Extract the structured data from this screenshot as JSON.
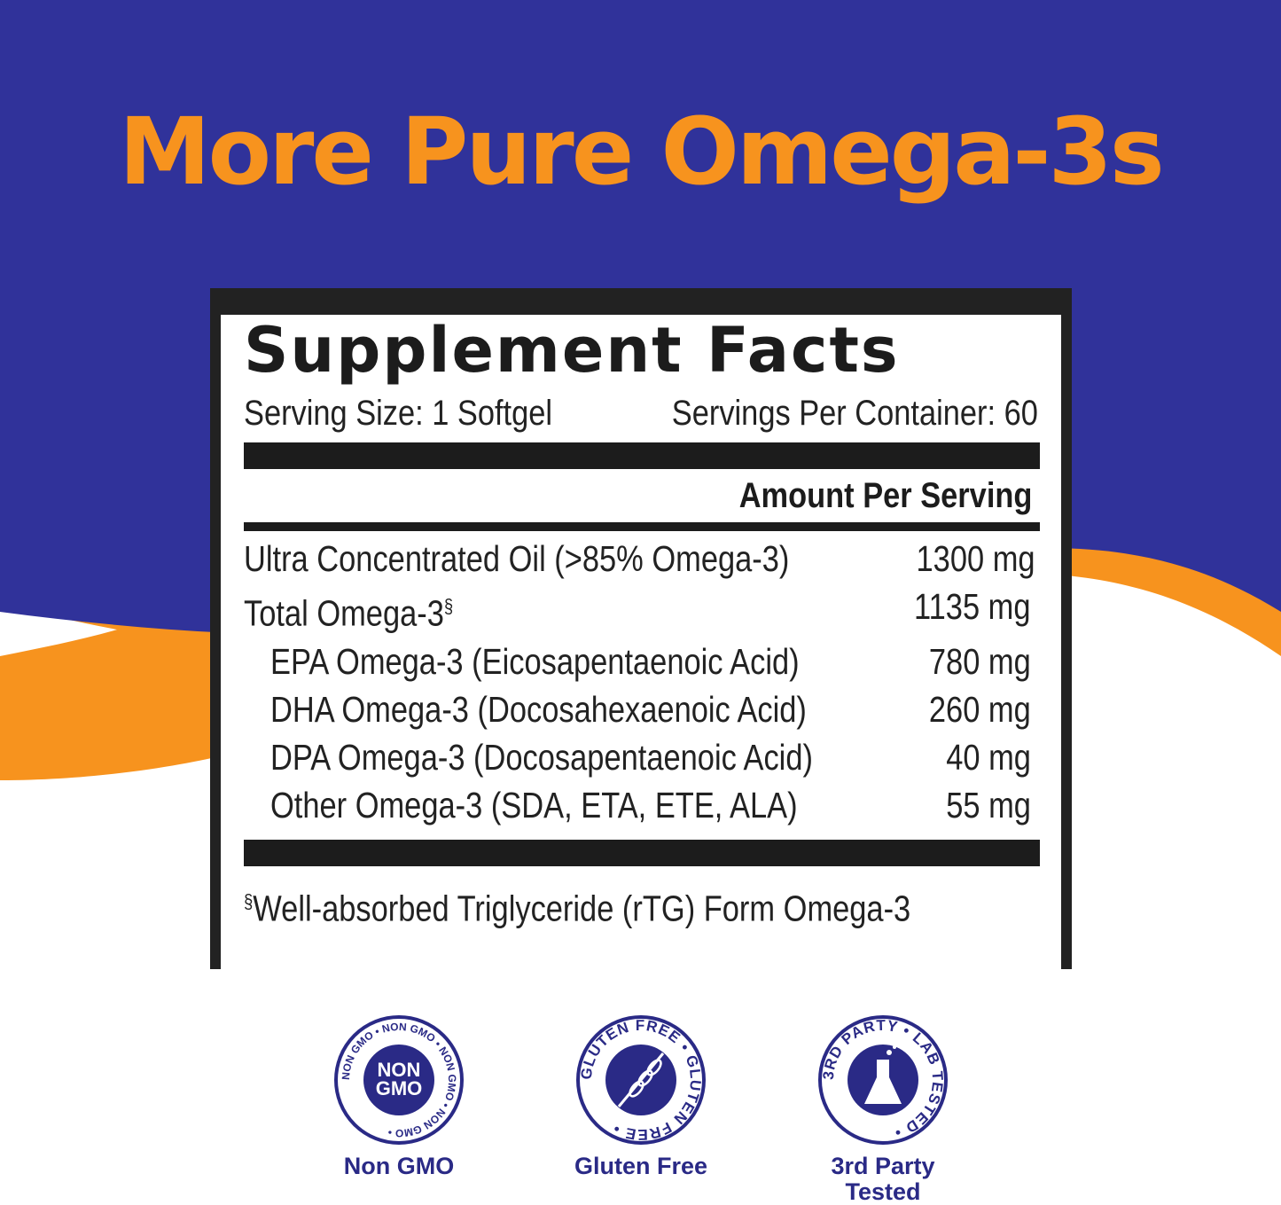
{
  "headline": "More Pure Omega-3s",
  "colors": {
    "background_blue": "#30329a",
    "accent_orange": "#f7931e",
    "badge_blue": "#2a2a86"
  },
  "facts": {
    "title": "Supplement Facts",
    "serving_size": "Serving Size: 1 Softgel",
    "servings_per_container": "Servings Per Container: 60",
    "amount_header": "Amount Per Serving",
    "rows": [
      {
        "name": "Ultra Concentrated Oil (>85% Omega-3)",
        "amount": "1300 mg"
      },
      {
        "name": "Total Omega-3",
        "mark": "§",
        "amount": "1135 mg"
      },
      {
        "name": "EPA Omega-3 (Eicosapentaenoic Acid)",
        "amount": "780 mg"
      },
      {
        "name": "DHA Omega-3 (Docosahexaenoic Acid)",
        "amount": "260 mg"
      },
      {
        "name": "DPA Omega-3 (Docosapentaenoic Acid)",
        "amount": "40 mg"
      },
      {
        "name": "Other Omega-3 (SDA, ETA, ETE, ALA)",
        "amount": "55 mg"
      }
    ],
    "footnote_mark": "§",
    "footnote": "Well-absorbed Triglyceride (rTG) Form Omega-3"
  },
  "badges": [
    {
      "icon": "non-gmo-seal-icon",
      "seal_text": "NON GMO",
      "ring_text": "NON GMO • NON GMO • NON GMO • NON GMO •",
      "label": "Non GMO"
    },
    {
      "icon": "gluten-free-wheat-icon",
      "ring_text": "GLUTEN FREE • GLUTEN FREE •",
      "label": "Gluten Free"
    },
    {
      "icon": "lab-flask-icon",
      "ring_text": "3RD PARTY • LAB TESTED •",
      "label_line1": "3rd Party",
      "label_line2": "Tested"
    }
  ]
}
